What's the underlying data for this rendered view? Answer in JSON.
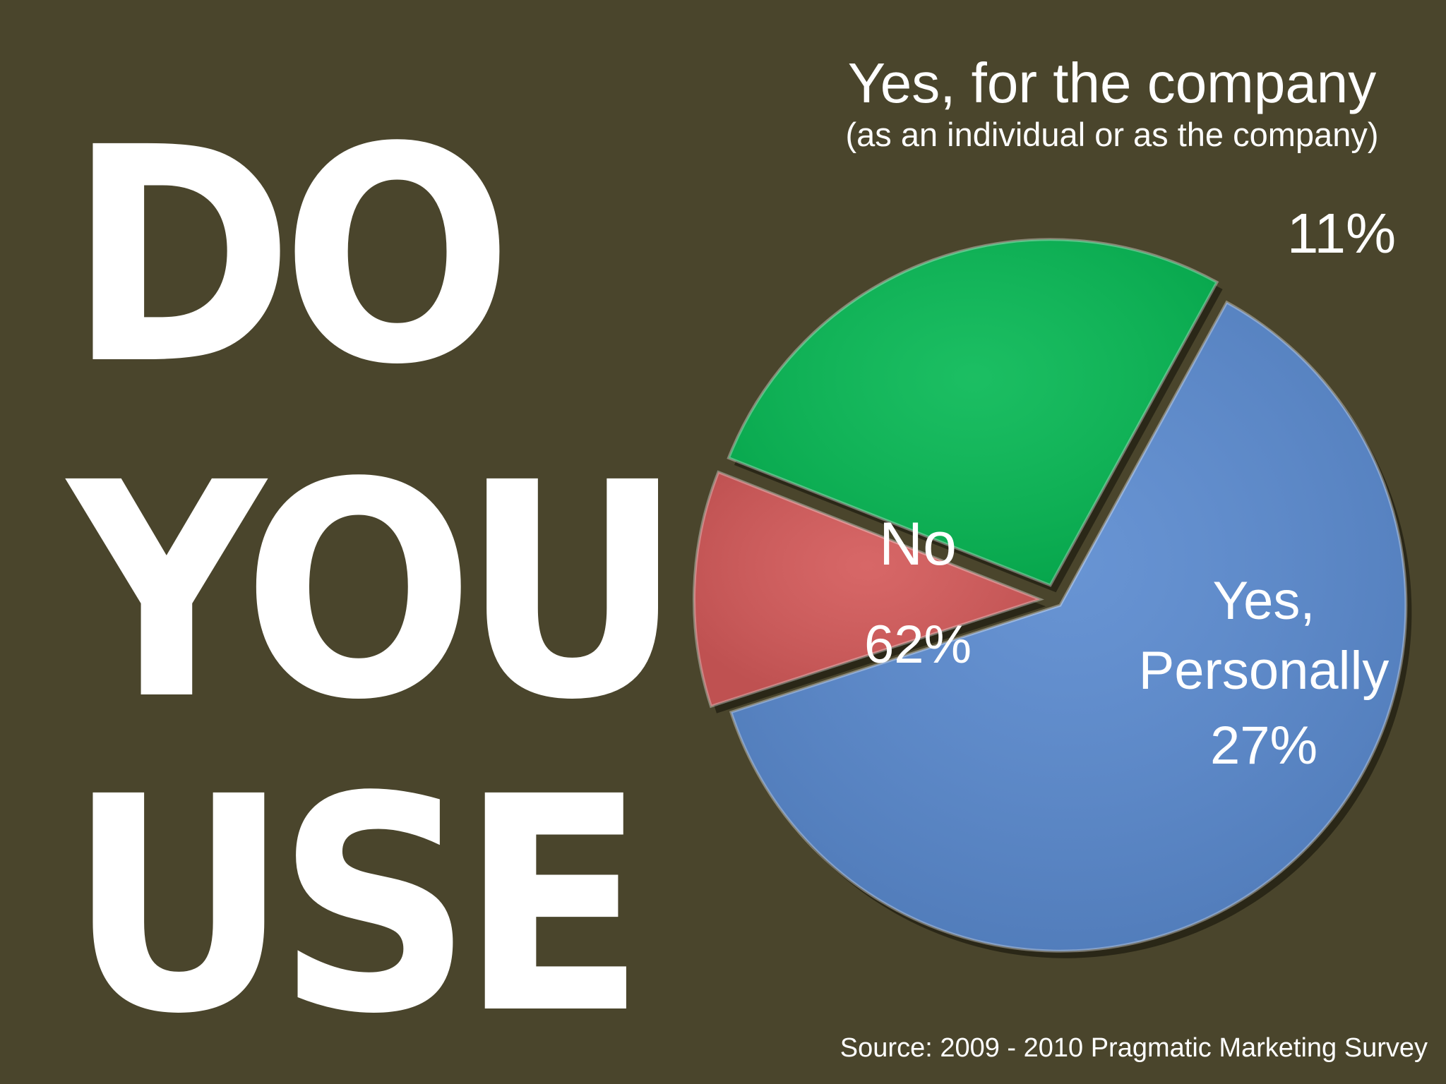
{
  "slide": {
    "words": [
      "DO",
      "YOU",
      "USE"
    ],
    "source": "Source: 2009 - 2010 Pragmatic Marketing Survey"
  },
  "chart_data": {
    "type": "pie",
    "slices": [
      {
        "name": "No",
        "value": 62,
        "label": "62%",
        "color": "#5b8bd0"
      },
      {
        "name": "Yes, for the company",
        "subtitle": "(as an individual or as the company)",
        "value": 11,
        "label": "11%",
        "color": "#d45a5a"
      },
      {
        "name_lines": [
          "Yes,",
          "Personally"
        ],
        "value": 27,
        "label": "27%",
        "color": "#08b955"
      }
    ],
    "legend": "none"
  }
}
